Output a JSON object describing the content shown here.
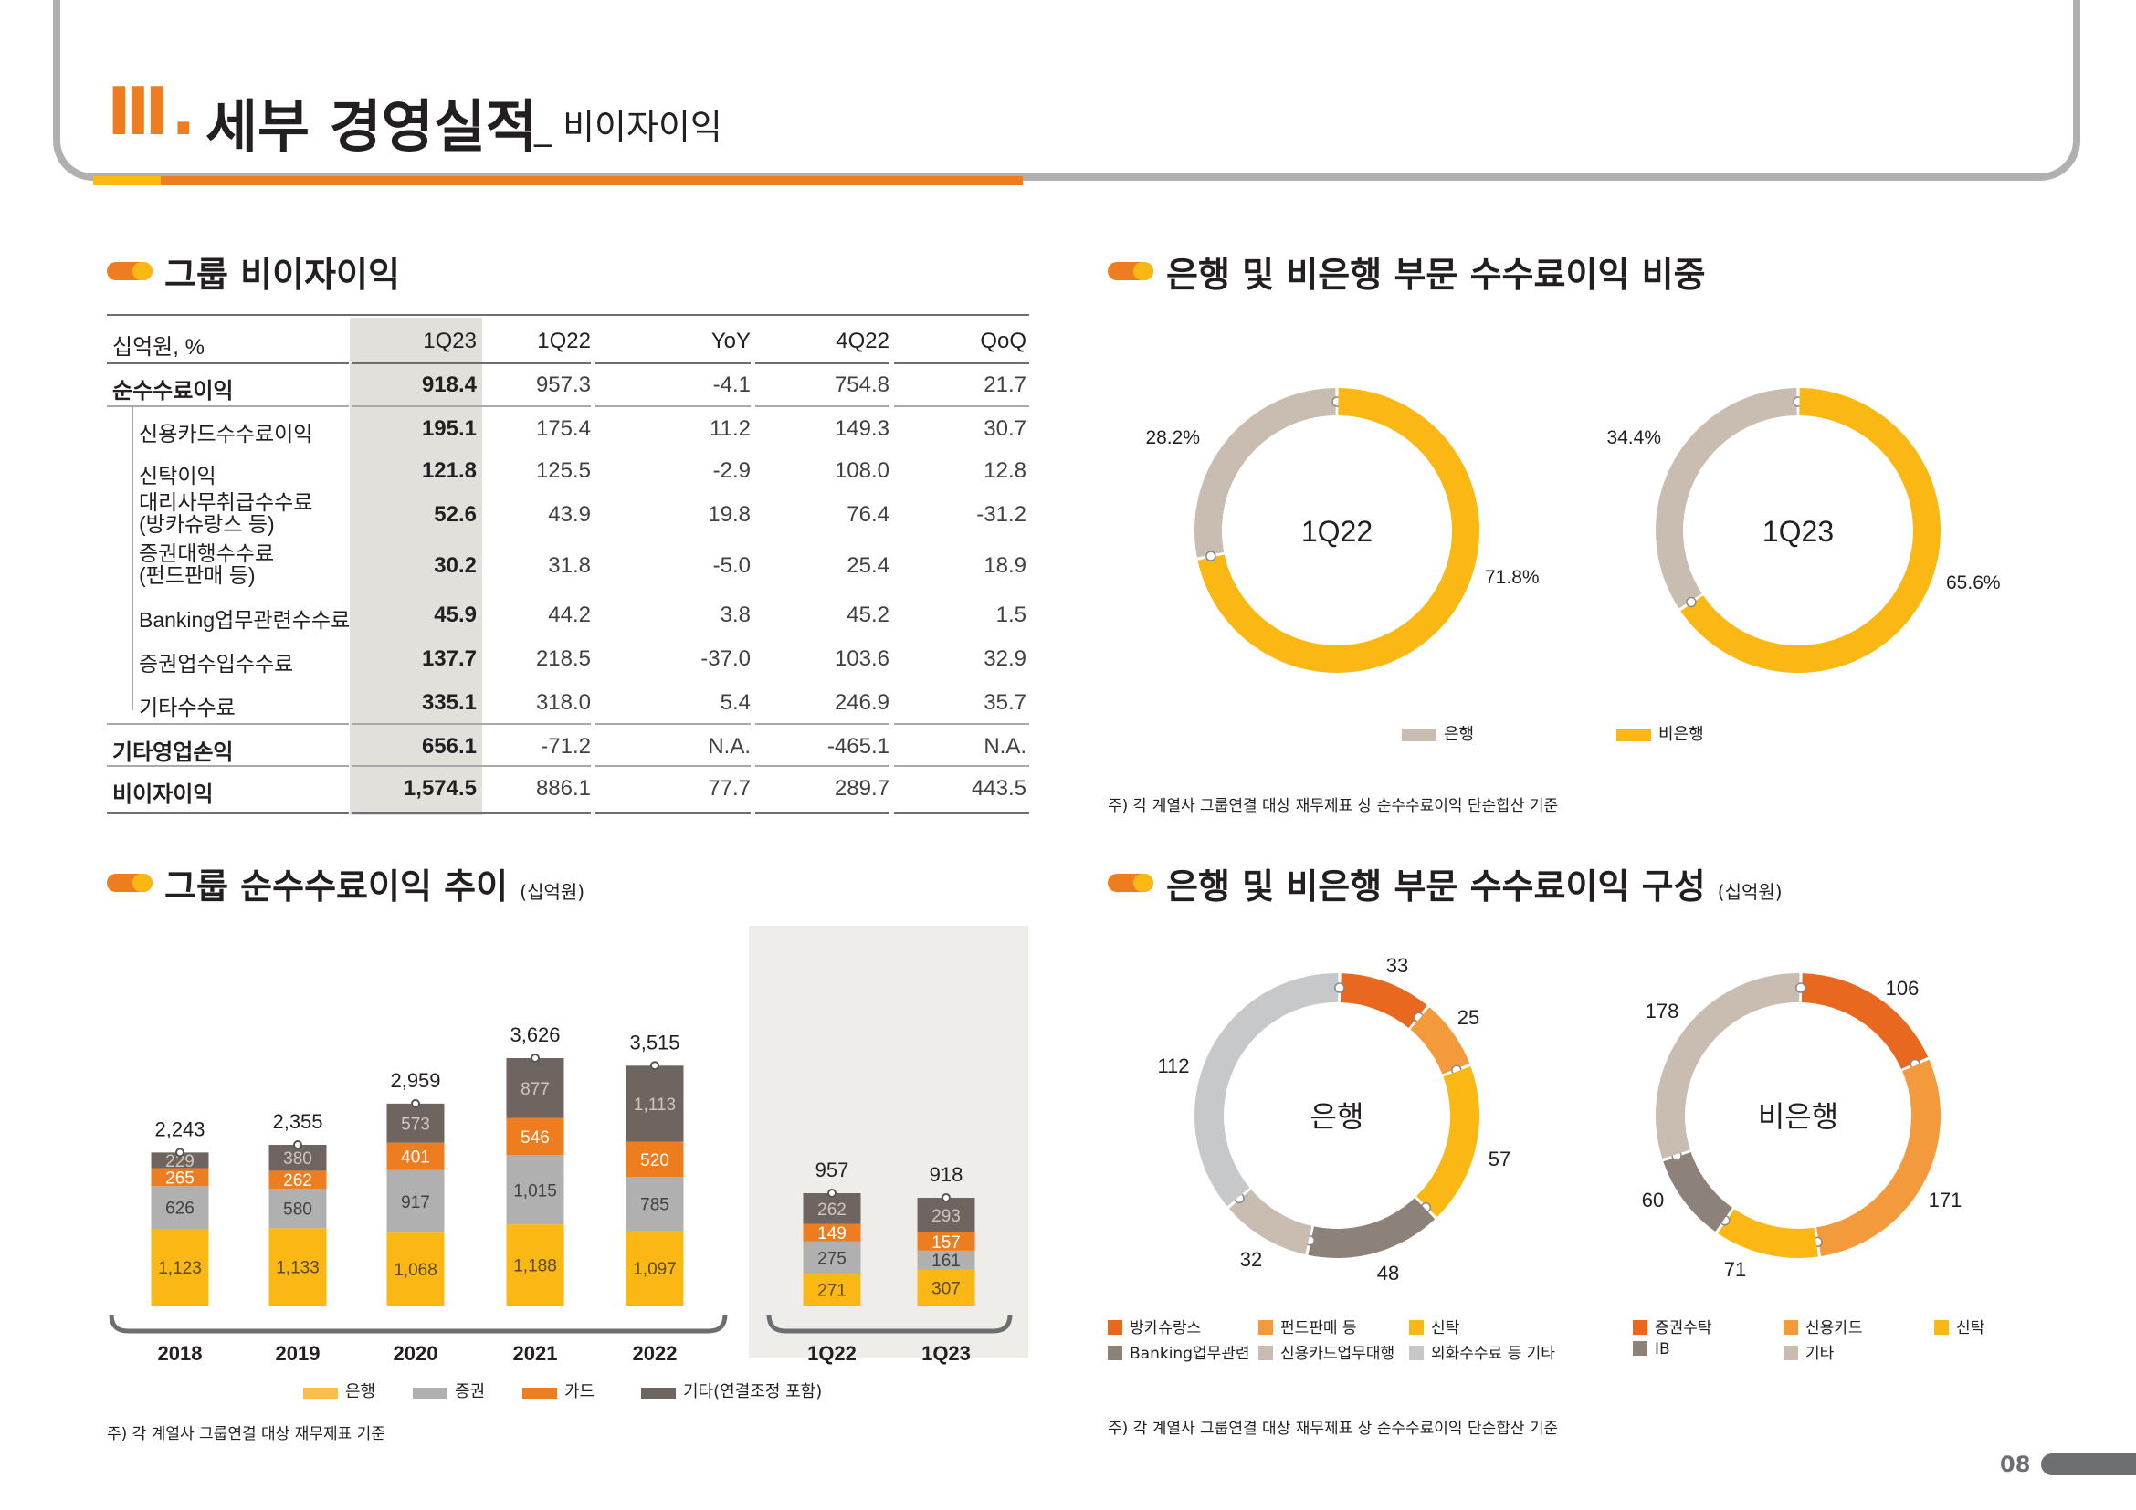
{
  "header": {
    "roman": "Ⅲ.",
    "title": "세부 경영실적",
    "subtitle": "_ 비이자이익"
  },
  "sections": {
    "table_title": "그룹 비이자이익",
    "share_title": "은행 및 비은행 부문 수수료이익 비중",
    "trend_title": "그룹 순수수료이익 추이",
    "trend_unit": "(십억원)",
    "comp_title": "은행 및 비은행 부문 수수료이익 구성",
    "comp_unit": "(십억원)"
  },
  "table": {
    "header": [
      "십억원, %",
      "1Q23",
      "1Q22",
      "YoY",
      "4Q22",
      "QoQ"
    ],
    "rows": [
      {
        "label": "순수수료이익",
        "values": [
          "918.4",
          "957.3",
          "-4.1",
          "754.8",
          "21.7"
        ],
        "level": 0
      },
      {
        "label": "신용카드수수료이익",
        "values": [
          "195.1",
          "175.4",
          "11.2",
          "149.3",
          "30.7"
        ],
        "level": 1
      },
      {
        "label": "신탁이익",
        "values": [
          "121.8",
          "125.5",
          "-2.9",
          "108.0",
          "12.8"
        ],
        "level": 1
      },
      {
        "label": "대리사무취급수수료 (방카슈랑스 등)",
        "line1": "대리사무취급수수료",
        "line2": "(방카슈랑스 등)",
        "values": [
          "52.6",
          "43.9",
          "19.8",
          "76.4",
          "-31.2"
        ],
        "level": 1
      },
      {
        "label": "증권대행수수료 (펀드판매 등)",
        "line1": "증권대행수수료",
        "line2": "(펀드판매 등)",
        "values": [
          "30.2",
          "31.8",
          "-5.0",
          "25.4",
          "18.9"
        ],
        "level": 1
      },
      {
        "label": "Banking업무관련수수료",
        "values": [
          "45.9",
          "44.2",
          "3.8",
          "45.2",
          "1.5"
        ],
        "level": 1
      },
      {
        "label": "증권업수입수수료",
        "values": [
          "137.7",
          "218.5",
          "-37.0",
          "103.6",
          "32.9"
        ],
        "level": 1
      },
      {
        "label": "기타수수료",
        "values": [
          "335.1",
          "318.0",
          "5.4",
          "246.9",
          "35.7"
        ],
        "level": 1
      },
      {
        "label": "기타영업손익",
        "values": [
          "656.1",
          "-71.2",
          "N.A.",
          "-465.1",
          "N.A."
        ],
        "level": 0
      },
      {
        "label": "비이자이익",
        "values": [
          "1,574.5",
          "886.1",
          "77.7",
          "289.7",
          "443.5"
        ],
        "level": 0
      }
    ]
  },
  "notes": {
    "share_note": "주) 각 계열사 그룹연결 대상 재무제표 상 순수수료이익 단순합산 기준",
    "trend_note": "주) 각 계열사 그룹연결 대상 재무제표 기준",
    "comp_note": "주) 각 계열사 그룹연결 대상 재무제표 상 순수수료이익 단순합산 기준"
  },
  "colors": {
    "bank": "#fbb714",
    "securities": "#b1b0b0",
    "card": "#ee7d1f",
    "other": "#6f6560",
    "gray_beige": "#c8bdb0",
    "shade": "#e3e0dc"
  },
  "chart_data": [
    {
      "type": "pie",
      "title": "1Q22",
      "categories": [
        "은행",
        "비은행"
      ],
      "values": [
        28.2,
        71.8
      ],
      "labels": [
        "28.2%",
        "71.8%"
      ]
    },
    {
      "type": "pie",
      "title": "1Q23",
      "categories": [
        "은행",
        "비은행"
      ],
      "values": [
        34.4,
        65.6
      ],
      "labels": [
        "34.4%",
        "65.6%"
      ]
    },
    {
      "type": "bar",
      "stacked": true,
      "categories": [
        "2018",
        "2019",
        "2020",
        "2021",
        "2022",
        "1Q22",
        "1Q23"
      ],
      "totals": [
        "2,243",
        "2,355",
        "2,959",
        "3,626",
        "3,515",
        "957",
        "918"
      ],
      "series": [
        {
          "name": "은행",
          "values": [
            1123,
            1133,
            1068,
            1188,
            1097,
            271,
            307
          ],
          "labels": [
            "1,123",
            "1,133",
            "1,068",
            "1,188",
            "1,097",
            "271",
            "307"
          ]
        },
        {
          "name": "증권",
          "values": [
            626,
            580,
            917,
            1015,
            785,
            275,
            161
          ],
          "labels": [
            "626",
            "580",
            "917",
            "1,015",
            "785",
            "275",
            "161"
          ]
        },
        {
          "name": "카드",
          "values": [
            265,
            262,
            401,
            546,
            520,
            149,
            157
          ],
          "labels": [
            "265",
            "262",
            "401",
            "546",
            "520",
            "149",
            "157"
          ]
        },
        {
          "name": "기타(연결조정 포함)",
          "values": [
            229,
            380,
            573,
            877,
            1113,
            262,
            293
          ],
          "labels": [
            "229",
            "380",
            "573",
            "877",
            "1,113",
            "262",
            "293"
          ]
        }
      ]
    },
    {
      "type": "pie",
      "title": "은행",
      "categories": [
        "방카슈랑스",
        "펀드판매 등",
        "신탁",
        "Banking업무관련",
        "신용카드업무대행",
        "외화수수료 등 기타"
      ],
      "values": [
        33,
        25,
        57,
        48,
        32,
        112
      ],
      "labels": [
        "33",
        "25",
        "57",
        "48",
        "32",
        "112"
      ]
    },
    {
      "type": "pie",
      "title": "비은행",
      "categories": [
        "증권수탁",
        "신용카드",
        "신탁",
        "IB",
        "기타"
      ],
      "values": [
        106,
        171,
        71,
        60,
        178
      ],
      "labels": [
        "106",
        "171",
        "71",
        "60",
        "178"
      ]
    }
  ],
  "legends": {
    "share": [
      "은행",
      "비은행"
    ],
    "trend": [
      "은행",
      "증권",
      "카드",
      "기타(연결조정 포함)"
    ],
    "bank_comp": [
      "방카슈랑스",
      "펀드판매 등",
      "신탁",
      "Banking업무관련",
      "신용카드업무대행",
      "외화수수료 등 기타"
    ],
    "nonbank_comp": [
      "증권수탁",
      "신용카드",
      "신탁",
      "IB",
      "기타"
    ]
  },
  "page_number": "08"
}
